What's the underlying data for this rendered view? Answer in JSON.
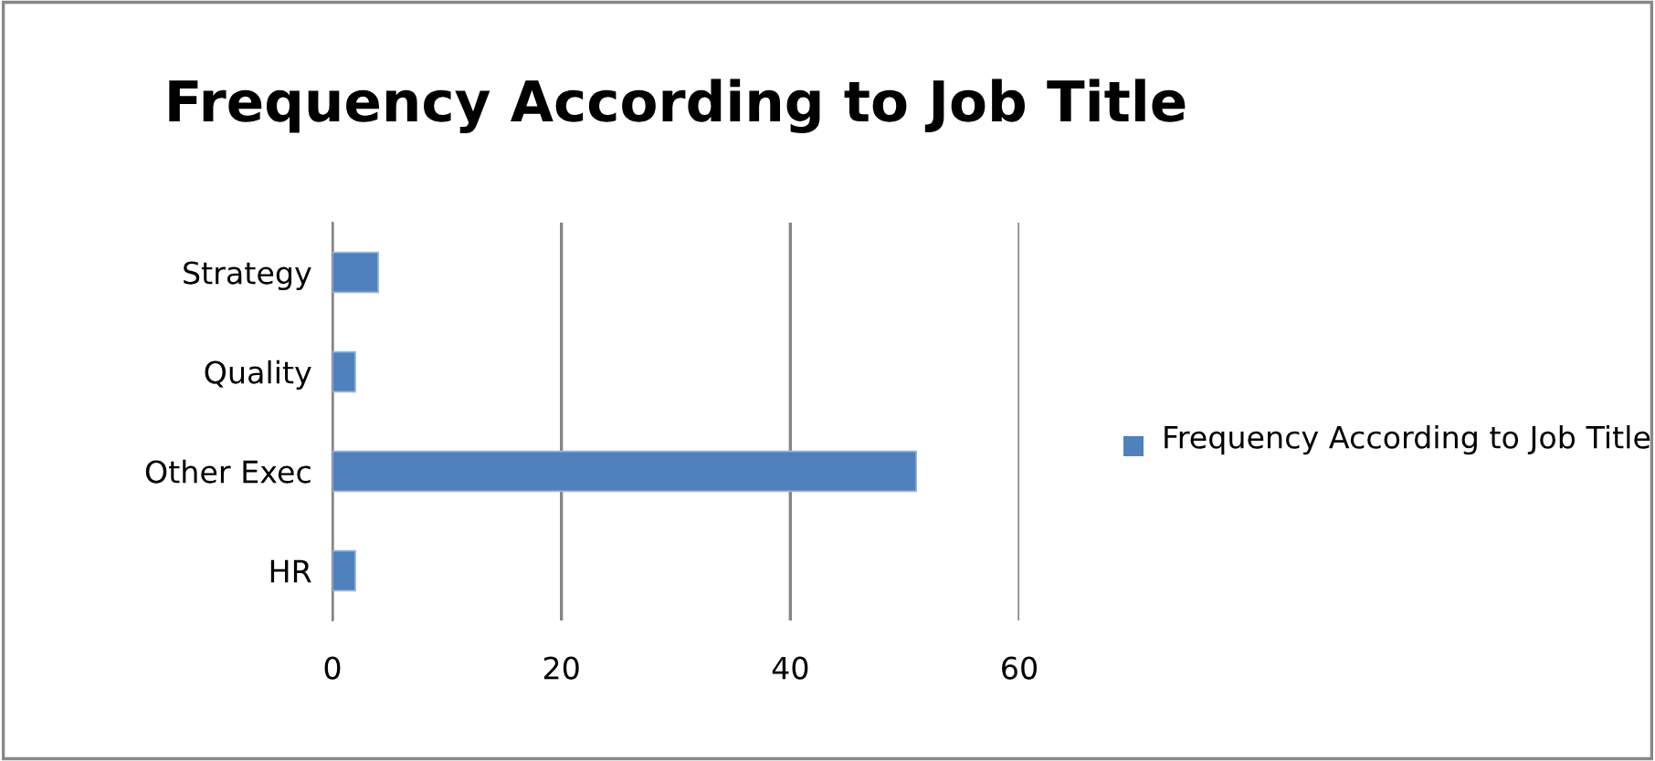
{
  "chart_data": {
    "type": "bar",
    "orientation": "horizontal",
    "title": "Frequency According to Job Title",
    "categories": [
      "Strategy",
      "Quality",
      "Other Exec",
      "HR"
    ],
    "series": [
      {
        "name": "Frequency According to Job Title",
        "color": "#4f81bd",
        "values": [
          4,
          2,
          51,
          2
        ]
      }
    ],
    "xlim": [
      0,
      60
    ],
    "xticks": [
      0,
      20,
      40,
      60
    ],
    "grid": "x",
    "legend": "right"
  }
}
